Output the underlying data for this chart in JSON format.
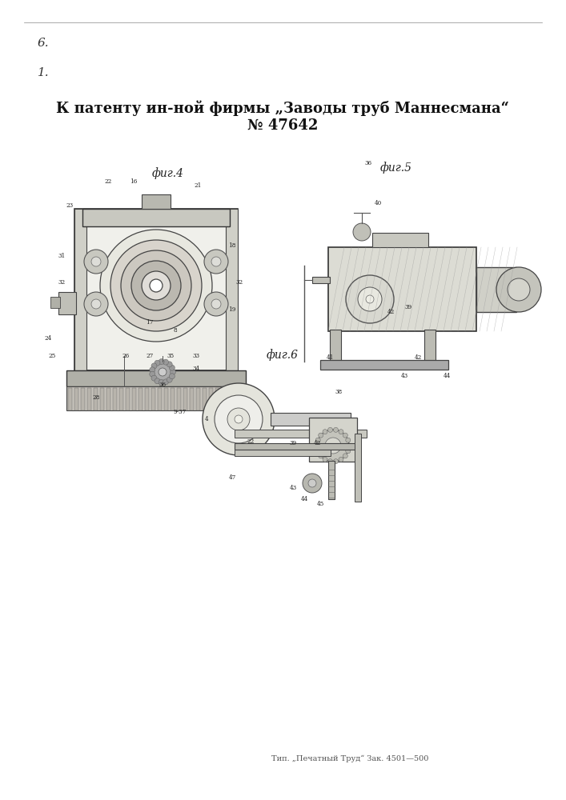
{
  "bg_color": "#ffffff",
  "page_width": 7.07,
  "page_height": 10.0,
  "title_line1": "К патенту ин-ной фирмы „Заводы труб Маннесмана“",
  "title_line2": "№ 47642",
  "title_fontsize": 13,
  "fig4_label": "фиг.4",
  "fig5_label": "фиг.5",
  "fig6_label": "фиг.6",
  "corner_text1": "6.",
  "corner_text2": "1.",
  "footer_text": "Тип. „Печатный Труд“ Зак. 4501—500",
  "footer_fontsize": 7
}
